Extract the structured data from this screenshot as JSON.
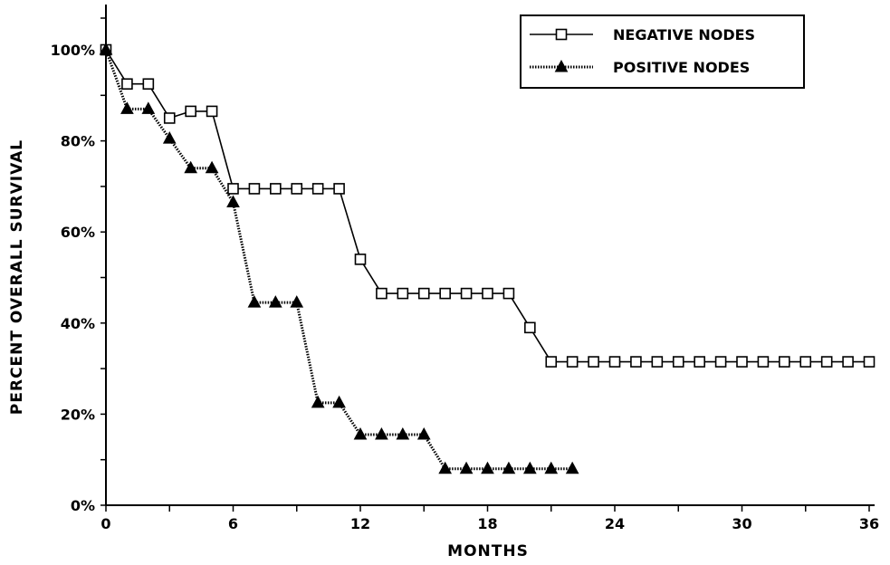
{
  "chart_data": {
    "type": "line",
    "title": "",
    "xlabel": "MONTHS",
    "ylabel": "PERCENT OVERALL SURVIVAL",
    "xlim": [
      0,
      36
    ],
    "ylim": [
      0,
      100
    ],
    "x_ticks": [
      0,
      6,
      12,
      18,
      24,
      30,
      36
    ],
    "x_tick_labels": [
      "0",
      "6",
      "12",
      "18",
      "24",
      "30",
      "36"
    ],
    "y_ticks": [
      0,
      20,
      40,
      60,
      80,
      100
    ],
    "y_tick_labels": [
      "0%",
      "20%",
      "40%",
      "60%",
      "80%",
      "100%"
    ],
    "grid": false,
    "legend_position": "top-right",
    "series": [
      {
        "name": "NEGATIVE NODES",
        "marker": "open-square",
        "line_style": "solid",
        "color": "#000000",
        "x": [
          0,
          1,
          2,
          3,
          4,
          5,
          6,
          7,
          8,
          9,
          10,
          11,
          12,
          13,
          14,
          15,
          16,
          17,
          18,
          19,
          20,
          21,
          22,
          23,
          24,
          25,
          26,
          27,
          28,
          29,
          30,
          31,
          32,
          33,
          34,
          35,
          36
        ],
        "y": [
          100,
          92.5,
          92.5,
          85,
          86.5,
          86.5,
          69.5,
          69.5,
          69.5,
          69.5,
          69.5,
          69.5,
          54,
          46.5,
          46.5,
          46.5,
          46.5,
          46.5,
          46.5,
          46.5,
          39,
          31.5,
          31.5,
          31.5,
          31.5,
          31.5,
          31.5,
          31.5,
          31.5,
          31.5,
          31.5,
          31.5,
          31.5,
          31.5,
          31.5,
          31.5,
          31.5
        ]
      },
      {
        "name": "POSITIVE NODES",
        "marker": "filled-triangle",
        "line_style": "dotted",
        "color": "#000000",
        "x": [
          0,
          1,
          2,
          3,
          4,
          5,
          6,
          7,
          8,
          9,
          10,
          11,
          12,
          13,
          14,
          15,
          16,
          17,
          18,
          19,
          20,
          21,
          22
        ],
        "y": [
          100,
          87,
          87,
          80.5,
          74,
          74,
          66.5,
          44.5,
          44.5,
          44.5,
          22.5,
          22.5,
          15.5,
          15.5,
          15.5,
          15.5,
          8,
          8,
          8,
          8,
          8,
          8,
          8
        ]
      }
    ]
  }
}
